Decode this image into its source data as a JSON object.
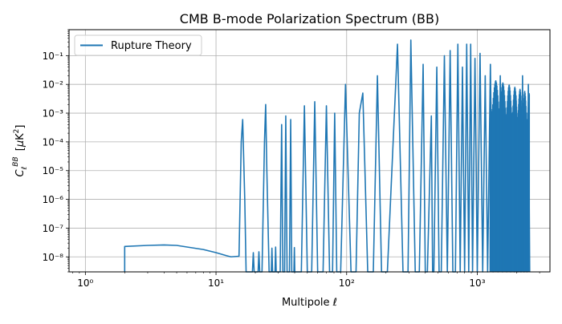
{
  "chart_data": {
    "type": "line",
    "title": "CMB B-mode Polarization Spectrum (BB)",
    "xlabel": "Multipole ℓ",
    "ylabel": "C_ℓ^BB [μK²]",
    "xscale": "log",
    "yscale": "log",
    "xlim": [
      0.75,
      3600
    ],
    "ylim": [
      3e-09,
      0.8
    ],
    "grid": true,
    "legend": "top-left",
    "x_tick_labels": [
      "10⁰",
      "10¹",
      "10²",
      "10³"
    ],
    "y_tick_labels": [
      "10⁻⁸",
      "10⁻⁷",
      "10⁻⁶",
      "10⁻⁵",
      "10⁻⁴",
      "10⁻³",
      "10⁻²",
      "10⁻¹"
    ],
    "colors": {
      "series": "#1f77b4",
      "grid": "#b0b0b0"
    },
    "series": [
      {
        "name": "Rupture Theory",
        "x": [
          2,
          2,
          3,
          4,
          5,
          6,
          8,
          10,
          12,
          13,
          15,
          15.6,
          16,
          16.6,
          17,
          19,
          19.3,
          19.6,
          21,
          21.3,
          21.6,
          22.5,
          23.5,
          24,
          24.5,
          25.5,
          26.5,
          26.8,
          27.1,
          28.3,
          28.6,
          28.9,
          31,
          31.8,
          32.5,
          33.5,
          34.2,
          35,
          36.5,
          37.3,
          38,
          39.5,
          39.8,
          40.1,
          45,
          47.5,
          50,
          54,
          57,
          60,
          66,
          70,
          74,
          78,
          81,
          84,
          90,
          98,
          108,
          118,
          125,
          133,
          145,
          160,
          172,
          185,
          195,
          205,
          245,
          270,
          295,
          310,
          335,
          360,
          385,
          400,
          415,
          445,
          455,
          465,
          490,
          510,
          530,
          560,
          590,
          620,
          650,
          680,
          710,
          740,
          770,
          800,
          830,
          860,
          890,
          920,
          960,
          1000,
          1050,
          1100,
          1150,
          1200,
          1260,
          1320,
          1380,
          1440,
          1500,
          1560,
          1620,
          1680,
          1740,
          1800,
          1860,
          1920,
          1980,
          2040,
          2100,
          2160,
          2220,
          2280,
          2340,
          2400,
          2460,
          2520
        ],
        "y": [
          3e-09,
          2.3e-08,
          2.5e-08,
          2.6e-08,
          2.5e-08,
          2.2e-08,
          1.8e-08,
          1.4e-08,
          1.1e-08,
          1e-08,
          1.05e-08,
          0.0001,
          0.0006,
          1e-06,
          3e-09,
          3e-09,
          1.4e-08,
          3e-09,
          3e-09,
          1.5e-08,
          3e-09,
          3e-09,
          0.0001,
          0.002,
          1e-05,
          3e-09,
          3e-09,
          2e-08,
          3e-09,
          3e-09,
          2.2e-08,
          3e-09,
          3e-09,
          0.0004,
          3e-09,
          3e-09,
          0.0008,
          3e-09,
          3e-09,
          0.0006,
          3e-09,
          3e-09,
          2.1e-08,
          3e-09,
          3e-09,
          0.0018,
          3e-09,
          3e-09,
          0.0025,
          3e-09,
          3e-09,
          0.0018,
          3e-09,
          3e-09,
          0.001,
          3e-09,
          3e-09,
          0.01,
          3e-09,
          3e-09,
          0.001,
          0.005,
          3e-09,
          3e-09,
          0.02,
          3e-09,
          3e-09,
          3e-09,
          0.25,
          3e-09,
          3e-09,
          0.35,
          3e-09,
          3e-09,
          0.05,
          3e-09,
          3e-09,
          0.0008,
          3e-09,
          3e-09,
          0.04,
          3e-09,
          3e-09,
          0.1,
          3e-09,
          0.15,
          3e-09,
          3e-09,
          0.25,
          3e-09,
          0.04,
          3e-09,
          0.25,
          3e-09,
          0.25,
          3e-09,
          0.08,
          3e-09,
          0.12,
          3e-09,
          0.02,
          3e-09,
          0.05,
          3e-09,
          0.003,
          3e-09,
          0.02,
          3e-09,
          0.002,
          3e-09,
          0.006,
          3e-09,
          0.001,
          3e-09,
          0.004,
          3e-09,
          0.001,
          3e-09,
          0.02,
          3e-09,
          0.002,
          3e-09,
          0.01,
          3e-09
        ]
      }
    ]
  }
}
